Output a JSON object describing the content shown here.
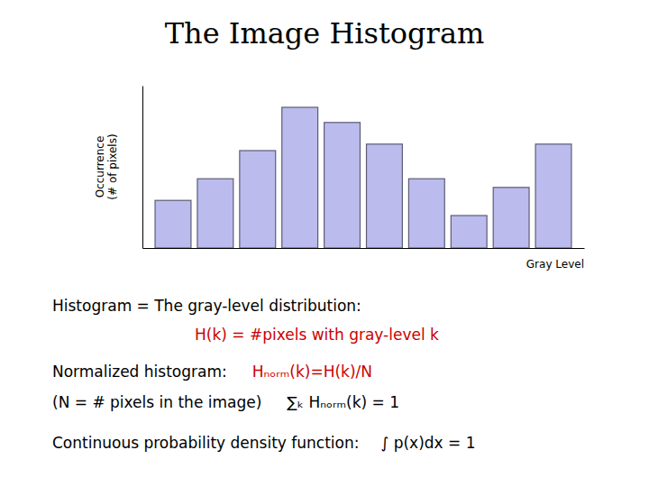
{
  "chart_data": {
    "type": "bar",
    "title": "The Image Histogram",
    "ylabel": "Occurrence\n(# of pixels)",
    "xlabel": "Gray Level",
    "categories": [
      null,
      null,
      null,
      null,
      null,
      null,
      null,
      null,
      null,
      null
    ],
    "values": [
      2.2,
      3.2,
      4.5,
      6.5,
      5.8,
      4.8,
      3.2,
      1.5,
      2.8,
      4.8
    ],
    "color": "#BBBBEE",
    "ylim": [
      0,
      7.5
    ],
    "tick_labels": false,
    "grid": false,
    "annotations": [
      {
        "text": "Histogram  =  The gray-level distribution:",
        "color": "#000000"
      },
      {
        "text": "H(k) = #pixels with gray-level k",
        "color": "#CC0000"
      },
      {
        "text": "Normalized histogram:",
        "color": "#000000"
      },
      {
        "text": "Hₙₒᵣₘ(k)=H(k)/N",
        "color": "#CC0000"
      },
      {
        "text": "(N = # pixels in the image)",
        "color": "#000000"
      },
      {
        "text": "∑ₖ Hₙₒᵣₘ(k) = 1",
        "color": "#000000"
      },
      {
        "text": "Continuous probability density function:",
        "color": "#000000"
      },
      {
        "text": "∫ p(x)dx = 1",
        "color": "#000000"
      }
    ]
  }
}
